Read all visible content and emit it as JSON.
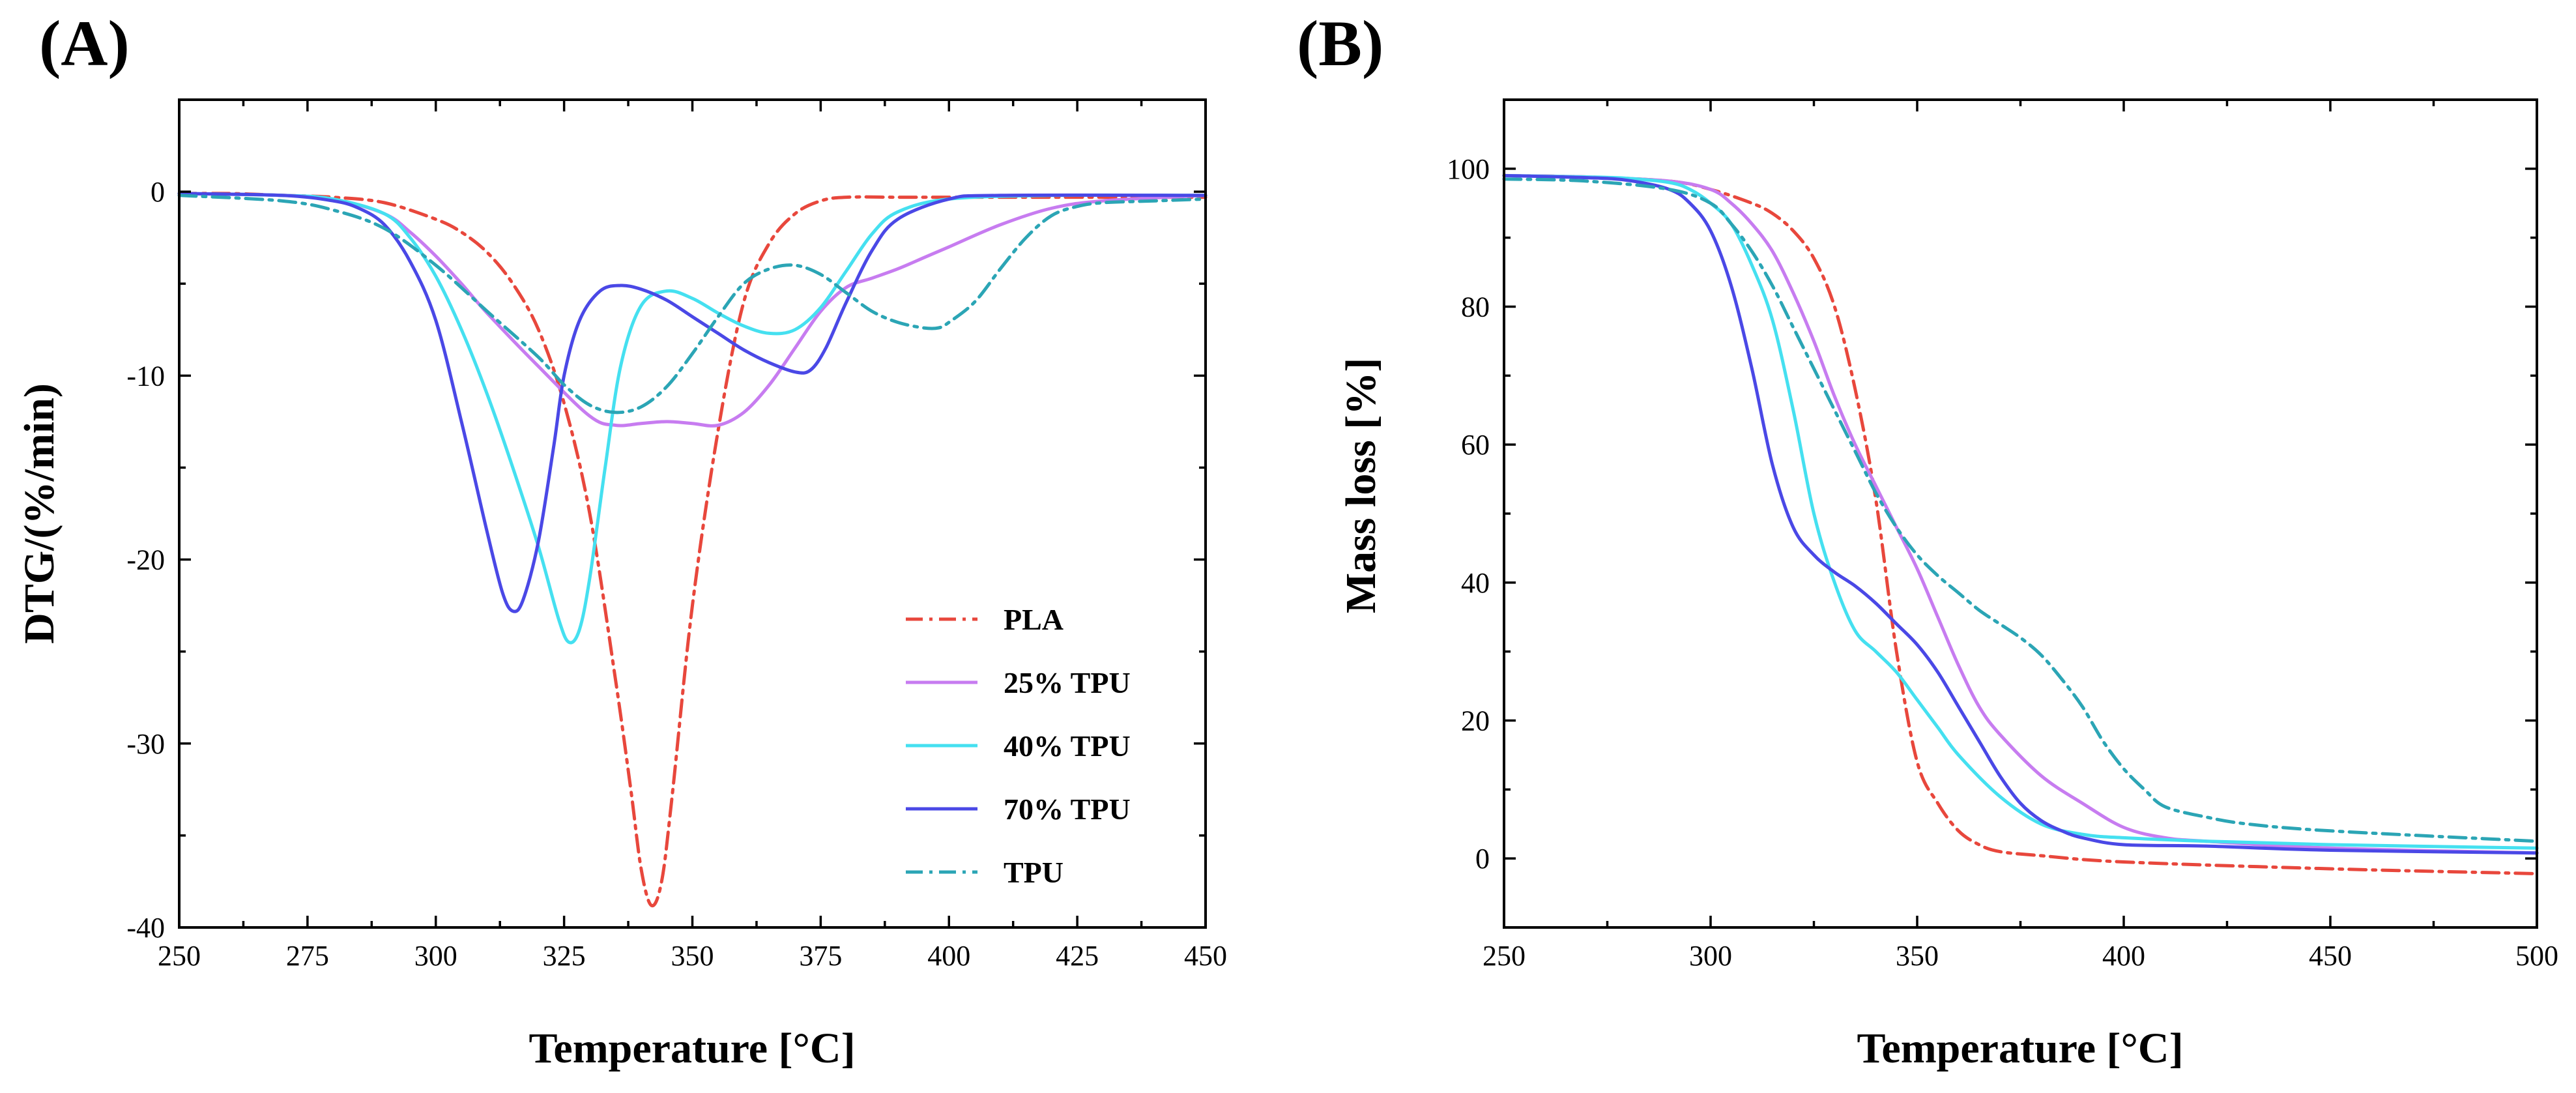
{
  "chart_data": [
    {
      "panel_label": "(A)",
      "type": "line",
      "xlabel": "Temperature [°C]",
      "ylabel": "DTG/(%/min)",
      "xlim": [
        250,
        450
      ],
      "ylim": [
        -40,
        5
      ],
      "xticks": [
        250,
        275,
        300,
        325,
        350,
        375,
        400,
        425,
        450
      ],
      "yticks": [
        0,
        -10,
        -20,
        -30,
        -40
      ],
      "legend": {
        "placement": "bottom-right"
      },
      "series": [
        {
          "name": "PLA",
          "color": "#e8473c",
          "dash": "dashdot",
          "x": [
            250,
            260,
            270,
            280,
            290,
            300,
            305,
            310,
            315,
            320,
            325,
            330,
            335,
            338,
            340,
            342,
            344,
            346,
            350,
            355,
            360,
            365,
            370,
            375,
            380,
            390,
            400,
            420,
            450
          ],
          "y": [
            -0.1,
            -0.1,
            -0.2,
            -0.3,
            -0.6,
            -1.5,
            -2.2,
            -3.3,
            -5.0,
            -7.5,
            -11.5,
            -17.5,
            -26.5,
            -32.5,
            -36.8,
            -38.8,
            -37.5,
            -33,
            -22.5,
            -13,
            -6,
            -2.8,
            -1.2,
            -0.5,
            -0.3,
            -0.3,
            -0.3,
            -0.3,
            -0.3
          ]
        },
        {
          "name": "25% TPU",
          "color": "#c77cf0",
          "dash": "solid",
          "x": [
            250,
            270,
            280,
            290,
            295,
            300,
            305,
            310,
            320,
            330,
            335,
            340,
            345,
            350,
            355,
            360,
            365,
            370,
            375,
            380,
            385,
            390,
            395,
            400,
            410,
            420,
            430,
            450
          ],
          "y": [
            -0.1,
            -0.2,
            -0.4,
            -1.2,
            -2.2,
            -3.5,
            -5.0,
            -6.6,
            -9.5,
            -12.2,
            -12.7,
            -12.6,
            -12.5,
            -12.6,
            -12.7,
            -12.0,
            -10.5,
            -8.5,
            -6.5,
            -5.2,
            -4.7,
            -4.2,
            -3.6,
            -3.0,
            -1.8,
            -0.9,
            -0.5,
            -0.2
          ]
        },
        {
          "name": "40% TPU",
          "color": "#45e0f0",
          "dash": "solid",
          "x": [
            250,
            270,
            280,
            290,
            295,
            300,
            305,
            310,
            315,
            320,
            324,
            326,
            328,
            330,
            333,
            336,
            340,
            345,
            350,
            355,
            360,
            365,
            370,
            375,
            380,
            385,
            390,
            400,
            420,
            450
          ],
          "y": [
            -0.1,
            -0.2,
            -0.4,
            -1.2,
            -2.5,
            -4.6,
            -7.5,
            -11.0,
            -15.0,
            -19.3,
            -23.3,
            -24.5,
            -23.8,
            -21.0,
            -15.0,
            -9.5,
            -6.2,
            -5.4,
            -5.8,
            -6.6,
            -7.3,
            -7.7,
            -7.5,
            -6.3,
            -4.3,
            -2.3,
            -1.1,
            -0.4,
            -0.2,
            -0.2
          ]
        },
        {
          "name": "70% TPU",
          "color": "#4a48e6",
          "dash": "solid",
          "x": [
            250,
            270,
            280,
            285,
            290,
            295,
            300,
            305,
            310,
            313,
            315,
            317,
            320,
            323,
            325,
            328,
            332,
            336,
            340,
            345,
            350,
            355,
            360,
            365,
            370,
            373,
            376,
            380,
            385,
            390,
            400,
            410,
            450
          ],
          "y": [
            -0.1,
            -0.2,
            -0.5,
            -0.9,
            -1.8,
            -3.8,
            -7.0,
            -12.5,
            -18.5,
            -21.8,
            -22.8,
            -22.2,
            -19.0,
            -13.8,
            -10.0,
            -7.0,
            -5.4,
            -5.1,
            -5.3,
            -5.9,
            -6.8,
            -7.7,
            -8.6,
            -9.3,
            -9.8,
            -9.7,
            -8.5,
            -6.0,
            -3.2,
            -1.5,
            -0.4,
            -0.2,
            -0.2
          ]
        },
        {
          "name": "TPU",
          "color": "#2ba5b5",
          "dash": "dashdot",
          "x": [
            250,
            270,
            280,
            290,
            300,
            310,
            320,
            325,
            330,
            335,
            340,
            345,
            350,
            355,
            360,
            365,
            370,
            375,
            380,
            385,
            390,
            395,
            398,
            400,
            405,
            410,
            415,
            420,
            425,
            430,
            440,
            450
          ],
          "y": [
            -0.2,
            -0.5,
            -1.0,
            -2.0,
            -4.0,
            -6.5,
            -9.0,
            -10.5,
            -11.6,
            -12.0,
            -11.7,
            -10.6,
            -8.8,
            -6.8,
            -5.0,
            -4.2,
            -4.0,
            -4.5,
            -5.5,
            -6.5,
            -7.1,
            -7.4,
            -7.4,
            -7.1,
            -6.0,
            -4.2,
            -2.5,
            -1.3,
            -0.8,
            -0.6,
            -0.5,
            -0.4
          ]
        }
      ]
    },
    {
      "panel_label": "(B)",
      "type": "line",
      "xlabel": "Temperature [°C]",
      "ylabel": "Mass loss [%]",
      "xlim": [
        250,
        500
      ],
      "ylim": [
        -10,
        110
      ],
      "xticks": [
        250,
        300,
        350,
        400,
        450,
        500
      ],
      "yticks": [
        0,
        20,
        40,
        60,
        80,
        100
      ],
      "series": [
        {
          "name": "PLA",
          "color": "#e8473c",
          "dash": "dashdot",
          "x": [
            250,
            270,
            290,
            300,
            310,
            315,
            320,
            325,
            330,
            335,
            340,
            345,
            350,
            355,
            360,
            365,
            370,
            380,
            400,
            450,
            500
          ],
          "y": [
            99,
            98.8,
            98.2,
            97,
            95,
            93.5,
            91,
            87,
            80,
            68,
            52,
            30,
            14,
            8,
            4,
            2,
            1,
            0.4,
            -0.5,
            -1.5,
            -2.2
          ]
        },
        {
          "name": "25% TPU",
          "color": "#c77cf0",
          "dash": "solid",
          "x": [
            250,
            270,
            290,
            300,
            305,
            310,
            315,
            320,
            325,
            330,
            335,
            340,
            345,
            350,
            355,
            360,
            365,
            370,
            380,
            390,
            400,
            410,
            420,
            450,
            500
          ],
          "y": [
            99,
            98.8,
            98.2,
            97,
            95,
            92,
            88,
            82,
            75,
            67,
            60,
            54,
            48,
            42,
            35,
            28,
            22,
            18,
            12,
            8,
            4.5,
            3,
            2.5,
            1.5,
            0.8
          ]
        },
        {
          "name": "40% TPU",
          "color": "#45e0f0",
          "dash": "solid",
          "x": [
            250,
            270,
            280,
            290,
            295,
            300,
            305,
            310,
            315,
            320,
            325,
            330,
            335,
            340,
            345,
            350,
            355,
            360,
            370,
            380,
            390,
            400,
            420,
            450,
            500
          ],
          "y": [
            99,
            98.8,
            98.6,
            98,
            97,
            95,
            92,
            86,
            78,
            65,
            50,
            40,
            33,
            30,
            27,
            23,
            19,
            15,
            9,
            5,
            3.5,
            3,
            2.5,
            2,
            1.5
          ]
        },
        {
          "name": "70% TPU",
          "color": "#4a48e6",
          "dash": "solid",
          "x": [
            250,
            270,
            280,
            290,
            295,
            300,
            305,
            310,
            315,
            320,
            325,
            330,
            335,
            340,
            345,
            350,
            355,
            360,
            365,
            370,
            375,
            380,
            385,
            390,
            400,
            420,
            450,
            500
          ],
          "y": [
            99,
            98.7,
            98.3,
            97,
            95,
            91,
            83,
            71,
            57,
            48,
            44,
            41.5,
            39.5,
            37,
            34,
            31,
            27,
            22,
            17,
            12,
            8,
            5.5,
            4,
            3,
            2,
            1.8,
            1.2,
            0.8
          ]
        },
        {
          "name": "TPU",
          "color": "#2ba5b5",
          "dash": "dashdot",
          "x": [
            250,
            270,
            290,
            300,
            305,
            310,
            315,
            320,
            325,
            330,
            335,
            340,
            345,
            350,
            355,
            360,
            365,
            370,
            375,
            380,
            385,
            390,
            395,
            400,
            405,
            410,
            420,
            430,
            450,
            500
          ],
          "y": [
            98.5,
            98.2,
            97,
            95,
            92,
            88,
            83,
            77,
            71,
            65,
            59,
            53,
            48,
            44,
            41,
            38.5,
            36,
            34,
            32,
            29.5,
            26,
            22,
            17,
            13,
            10,
            7.5,
            6,
            5,
            4,
            2.5
          ]
        }
      ]
    }
  ]
}
